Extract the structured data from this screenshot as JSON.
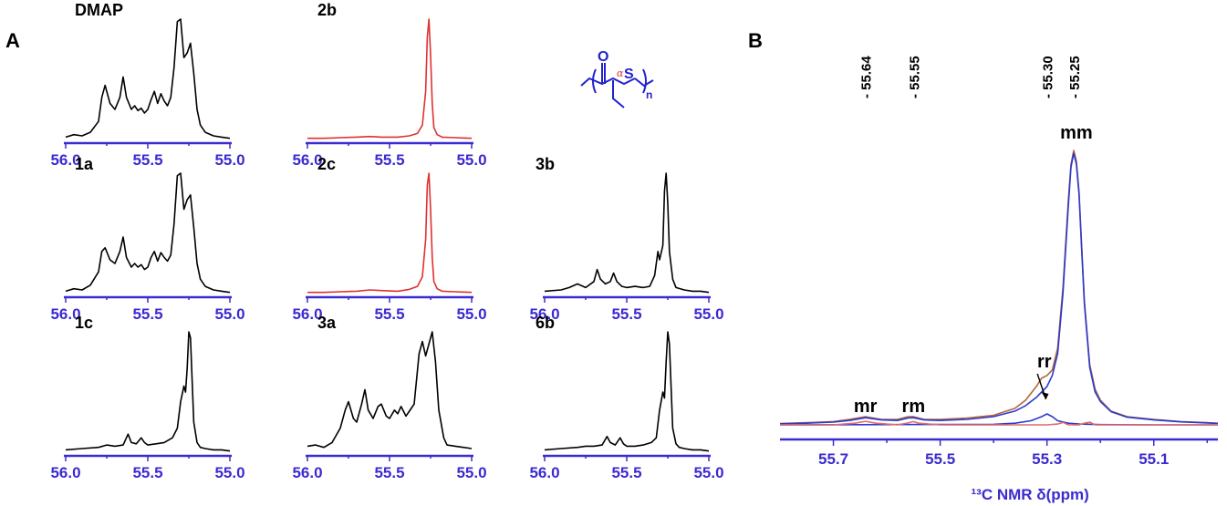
{
  "panel_labels": {
    "a": "A",
    "b": "B"
  },
  "structure": {
    "o": "O",
    "s": "S",
    "n": "n",
    "alpha": "α"
  },
  "colors": {
    "axis": "#3b2bd0",
    "black": "#000000",
    "red": "#e03030",
    "blue": "#2a3ad0",
    "brown": "#b5653a",
    "pink": "#e06a6a"
  },
  "chart_data": [
    {
      "type": "line",
      "label": "DMAP",
      "color": "#000000",
      "xlim": [
        56.0,
        55.0
      ],
      "ticks": [
        "56.0",
        "55.5",
        "55.0"
      ],
      "series": [
        {
          "x": [
            56.0,
            55.95,
            55.9,
            55.85,
            55.8,
            55.78,
            55.76,
            55.73,
            55.7,
            55.67,
            55.65,
            55.63,
            55.6,
            55.58,
            55.56,
            55.54,
            55.52,
            55.5,
            55.48,
            55.46,
            55.44,
            55.42,
            55.4,
            55.38,
            55.36,
            55.34,
            55.32,
            55.3,
            55.28,
            55.26,
            55.24,
            55.22,
            55.2,
            55.18,
            55.15,
            55.1,
            55.05,
            55.0
          ],
          "y": [
            0.02,
            0.04,
            0.03,
            0.06,
            0.15,
            0.35,
            0.45,
            0.3,
            0.25,
            0.35,
            0.52,
            0.35,
            0.25,
            0.28,
            0.24,
            0.26,
            0.22,
            0.25,
            0.33,
            0.4,
            0.3,
            0.38,
            0.32,
            0.28,
            0.35,
            0.6,
            0.98,
            1.0,
            0.68,
            0.72,
            0.8,
            0.55,
            0.25,
            0.12,
            0.06,
            0.03,
            0.02,
            0.01
          ]
        }
      ]
    },
    {
      "type": "line",
      "label": "2b",
      "color": "#e03030",
      "xlim": [
        56.0,
        55.0
      ],
      "ticks": [
        "56.0",
        "55.5",
        "55.0"
      ],
      "series": [
        {
          "x": [
            56.0,
            55.9,
            55.8,
            55.7,
            55.62,
            55.55,
            55.45,
            55.38,
            55.33,
            55.3,
            55.28,
            55.27,
            55.26,
            55.25,
            55.24,
            55.23,
            55.21,
            55.18,
            55.1,
            55.0
          ],
          "y": [
            0.01,
            0.01,
            0.015,
            0.02,
            0.025,
            0.02,
            0.02,
            0.03,
            0.05,
            0.12,
            0.4,
            0.85,
            1.0,
            0.7,
            0.3,
            0.1,
            0.04,
            0.02,
            0.015,
            0.01
          ]
        }
      ]
    },
    {
      "type": "line",
      "label": "1a",
      "color": "#000000",
      "xlim": [
        56.0,
        55.0
      ],
      "ticks": [
        "56.0",
        "55.5",
        "55.0"
      ],
      "series": [
        {
          "x": [
            56.0,
            55.95,
            55.9,
            55.85,
            55.8,
            55.78,
            55.76,
            55.73,
            55.7,
            55.67,
            55.65,
            55.63,
            55.6,
            55.58,
            55.56,
            55.54,
            55.52,
            55.5,
            55.48,
            55.46,
            55.44,
            55.42,
            55.4,
            55.38,
            55.36,
            55.34,
            55.32,
            55.3,
            55.28,
            55.26,
            55.24,
            55.22,
            55.2,
            55.18,
            55.15,
            55.1,
            55.05,
            55.0
          ],
          "y": [
            0.02,
            0.04,
            0.03,
            0.07,
            0.18,
            0.35,
            0.38,
            0.28,
            0.25,
            0.35,
            0.47,
            0.3,
            0.22,
            0.25,
            0.22,
            0.24,
            0.2,
            0.22,
            0.3,
            0.35,
            0.27,
            0.34,
            0.3,
            0.27,
            0.32,
            0.58,
            0.98,
            1.0,
            0.7,
            0.78,
            0.82,
            0.55,
            0.25,
            0.12,
            0.06,
            0.03,
            0.02,
            0.01
          ]
        }
      ]
    },
    {
      "type": "line",
      "label": "2c",
      "color": "#e03030",
      "xlim": [
        56.0,
        55.0
      ],
      "ticks": [
        "56.0",
        "55.5",
        "55.0"
      ],
      "series": [
        {
          "x": [
            56.0,
            55.9,
            55.8,
            55.7,
            55.62,
            55.55,
            55.45,
            55.38,
            55.33,
            55.3,
            55.28,
            55.27,
            55.26,
            55.25,
            55.24,
            55.23,
            55.21,
            55.18,
            55.1,
            55.0
          ],
          "y": [
            0.01,
            0.01,
            0.015,
            0.02,
            0.03,
            0.025,
            0.02,
            0.035,
            0.06,
            0.14,
            0.45,
            0.9,
            1.0,
            0.7,
            0.3,
            0.1,
            0.04,
            0.02,
            0.015,
            0.01
          ]
        }
      ]
    },
    {
      "type": "line",
      "label": "3b",
      "color": "#000000",
      "xlim": [
        56.0,
        55.0
      ],
      "ticks": [
        "56.0",
        "55.5",
        "55.0"
      ],
      "series": [
        {
          "x": [
            56.0,
            55.9,
            55.85,
            55.8,
            55.75,
            55.7,
            55.68,
            55.66,
            55.63,
            55.6,
            55.58,
            55.56,
            55.53,
            55.5,
            55.45,
            55.4,
            55.36,
            55.33,
            55.31,
            55.3,
            55.28,
            55.27,
            55.26,
            55.25,
            55.24,
            55.22,
            55.2,
            55.15,
            55.1,
            55.05,
            55.0
          ],
          "y": [
            0.02,
            0.03,
            0.05,
            0.08,
            0.05,
            0.1,
            0.2,
            0.12,
            0.08,
            0.1,
            0.17,
            0.1,
            0.06,
            0.05,
            0.06,
            0.05,
            0.06,
            0.15,
            0.35,
            0.28,
            0.4,
            0.85,
            1.0,
            0.75,
            0.35,
            0.12,
            0.05,
            0.03,
            0.02,
            0.02,
            0.01
          ]
        }
      ]
    },
    {
      "type": "line",
      "label": "1c",
      "color": "#000000",
      "xlim": [
        56.0,
        55.0
      ],
      "ticks": [
        "56.0",
        "55.5",
        "55.0"
      ],
      "series": [
        {
          "x": [
            56.0,
            55.9,
            55.8,
            55.75,
            55.7,
            55.65,
            55.62,
            55.6,
            55.57,
            55.54,
            55.52,
            55.5,
            55.45,
            55.4,
            55.35,
            55.32,
            55.3,
            55.28,
            55.27,
            55.26,
            55.25,
            55.24,
            55.23,
            55.22,
            55.2,
            55.18,
            55.15,
            55.1,
            55.05,
            55.0
          ],
          "y": [
            0.02,
            0.03,
            0.04,
            0.06,
            0.05,
            0.06,
            0.15,
            0.08,
            0.07,
            0.12,
            0.08,
            0.06,
            0.07,
            0.08,
            0.12,
            0.2,
            0.42,
            0.55,
            0.5,
            0.7,
            1.0,
            0.95,
            0.6,
            0.25,
            0.08,
            0.04,
            0.03,
            0.02,
            0.02,
            0.01
          ]
        }
      ]
    },
    {
      "type": "line",
      "label": "3a",
      "color": "#000000",
      "xlim": [
        56.0,
        55.0
      ],
      "ticks": [
        "56.0",
        "55.5",
        "55.0"
      ],
      "series": [
        {
          "x": [
            56.0,
            55.95,
            55.9,
            55.85,
            55.8,
            55.77,
            55.75,
            55.72,
            55.7,
            55.67,
            55.65,
            55.63,
            55.6,
            55.57,
            55.55,
            55.52,
            55.5,
            55.47,
            55.45,
            55.43,
            55.4,
            55.37,
            55.35,
            55.32,
            55.3,
            55.28,
            55.26,
            55.24,
            55.22,
            55.2,
            55.17,
            55.15,
            55.1,
            55.05,
            55.0
          ],
          "y": [
            0.05,
            0.06,
            0.04,
            0.08,
            0.2,
            0.35,
            0.42,
            0.28,
            0.25,
            0.4,
            0.52,
            0.35,
            0.28,
            0.38,
            0.4,
            0.3,
            0.28,
            0.35,
            0.32,
            0.38,
            0.3,
            0.36,
            0.4,
            0.82,
            0.92,
            0.8,
            0.9,
            1.0,
            0.75,
            0.35,
            0.12,
            0.06,
            0.05,
            0.04,
            0.03
          ]
        }
      ]
    },
    {
      "type": "line",
      "label": "6b",
      "color": "#000000",
      "xlim": [
        56.0,
        55.0
      ],
      "ticks": [
        "56.0",
        "55.5",
        "55.0"
      ],
      "series": [
        {
          "x": [
            56.0,
            55.9,
            55.8,
            55.75,
            55.7,
            55.65,
            55.62,
            55.6,
            55.57,
            55.54,
            55.52,
            55.5,
            55.45,
            55.4,
            55.35,
            55.32,
            55.3,
            55.28,
            55.27,
            55.26,
            55.25,
            55.24,
            55.23,
            55.22,
            55.2,
            55.18,
            55.15,
            55.1,
            55.05,
            55.0
          ],
          "y": [
            0.02,
            0.03,
            0.04,
            0.05,
            0.05,
            0.06,
            0.13,
            0.08,
            0.06,
            0.12,
            0.07,
            0.05,
            0.05,
            0.06,
            0.08,
            0.12,
            0.35,
            0.5,
            0.45,
            0.75,
            1.0,
            0.9,
            0.55,
            0.2,
            0.07,
            0.04,
            0.03,
            0.02,
            0.02,
            0.01
          ]
        }
      ]
    },
    {
      "type": "line",
      "xlim": [
        55.8,
        54.98
      ],
      "ticks": [
        "55.7",
        "55.5",
        "55.3",
        "55.1"
      ],
      "xlabel": "¹³C NMR δ(ppm)",
      "peak_labels": [
        "- 55.64",
        "- 55.55",
        "- 55.30",
        "- 55.25"
      ],
      "regions": [
        {
          "label": "mm",
          "x": 55.245
        },
        {
          "label": "rr",
          "x": 55.305
        },
        {
          "label": "rm",
          "x": 55.55
        },
        {
          "label": "mr",
          "x": 55.64
        }
      ],
      "series": [
        {
          "name": "",
          "color": "#b5653a",
          "x": [
            55.8,
            55.75,
            55.7,
            55.67,
            55.64,
            55.61,
            55.58,
            55.56,
            55.55,
            55.53,
            55.5,
            55.45,
            55.4,
            55.36,
            55.34,
            55.32,
            55.31,
            55.3,
            55.29,
            55.28,
            55.27,
            55.26,
            55.255,
            55.25,
            55.245,
            55.24,
            55.235,
            55.23,
            55.22,
            55.21,
            55.2,
            55.18,
            55.15,
            55.1,
            55.05,
            55.0,
            54.98
          ],
          "y": [
            0.005,
            0.008,
            0.012,
            0.02,
            0.03,
            0.02,
            0.02,
            0.03,
            0.03,
            0.02,
            0.02,
            0.025,
            0.035,
            0.06,
            0.09,
            0.14,
            0.17,
            0.18,
            0.2,
            0.28,
            0.5,
            0.82,
            0.95,
            1.0,
            0.96,
            0.85,
            0.65,
            0.45,
            0.22,
            0.13,
            0.09,
            0.05,
            0.03,
            0.02,
            0.012,
            0.008,
            0.006
          ]
        },
        {
          "name": "",
          "color": "#2a3ad0",
          "x": [
            55.8,
            55.75,
            55.7,
            55.67,
            55.64,
            55.61,
            55.58,
            55.56,
            55.55,
            55.53,
            55.5,
            55.45,
            55.4,
            55.36,
            55.34,
            55.32,
            55.31,
            55.3,
            55.29,
            55.28,
            55.27,
            55.26,
            55.255,
            55.25,
            55.245,
            55.24,
            55.235,
            55.23,
            55.22,
            55.21,
            55.2,
            55.18,
            55.15,
            55.1,
            55.05,
            55.0,
            54.98
          ],
          "y": [
            0.004,
            0.006,
            0.01,
            0.016,
            0.026,
            0.018,
            0.016,
            0.025,
            0.026,
            0.018,
            0.016,
            0.02,
            0.03,
            0.05,
            0.07,
            0.1,
            0.12,
            0.14,
            0.18,
            0.26,
            0.48,
            0.8,
            0.94,
            0.99,
            0.95,
            0.84,
            0.64,
            0.44,
            0.21,
            0.12,
            0.085,
            0.048,
            0.028,
            0.018,
            0.011,
            0.007,
            0.005
          ]
        },
        {
          "name": "",
          "color": "#2a3ad0",
          "x": [
            55.8,
            55.4,
            55.36,
            55.33,
            55.31,
            55.3,
            55.29,
            55.28,
            55.26,
            55.24,
            55.2,
            55.1,
            54.98
          ],
          "y": [
            0.0,
            0.002,
            0.006,
            0.015,
            0.03,
            0.04,
            0.03,
            0.015,
            0.006,
            0.003,
            0.001,
            0.0,
            0.0
          ]
        },
        {
          "name": "",
          "color": "#e06a6a",
          "x": [
            55.8,
            55.7,
            55.66,
            55.64,
            55.62,
            55.58,
            55.56,
            55.55,
            55.54,
            55.5,
            55.3,
            55.28,
            55.27,
            55.26,
            55.24,
            55.23,
            55.22,
            55.21,
            55.1,
            54.98
          ],
          "y": [
            0.0,
            0.0,
            0.006,
            0.013,
            0.006,
            0.0,
            0.007,
            0.012,
            0.006,
            0.0,
            0.0,
            0.003,
            0.009,
            0.0,
            0.0,
            0.006,
            0.01,
            0.0,
            0.0,
            0.0
          ]
        }
      ]
    }
  ]
}
